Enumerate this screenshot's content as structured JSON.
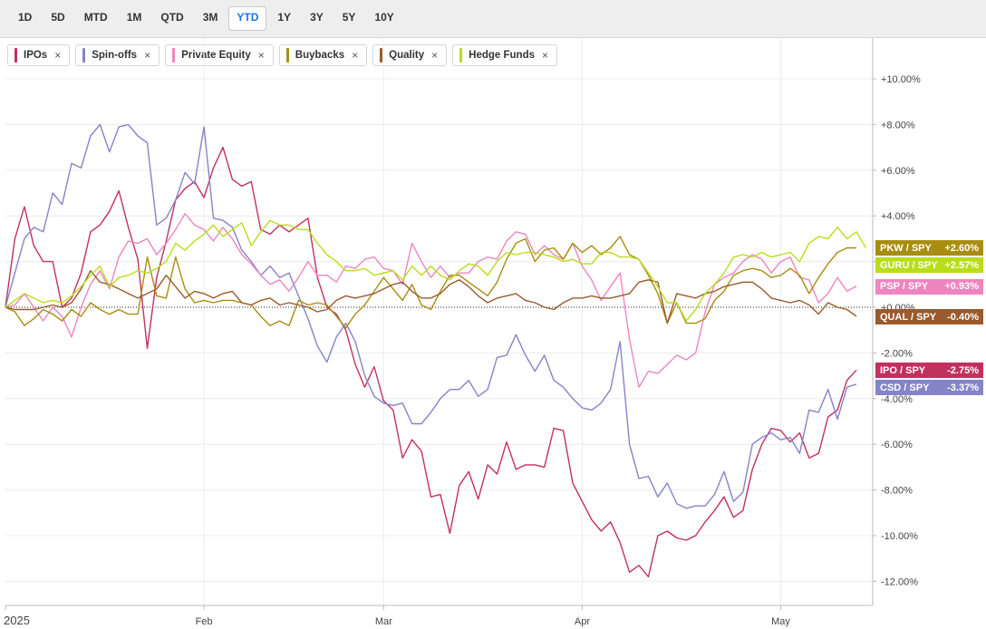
{
  "toolbar": {
    "ranges": [
      "1D",
      "5D",
      "MTD",
      "1M",
      "QTD",
      "3M",
      "YTD",
      "1Y",
      "3Y",
      "5Y",
      "10Y"
    ],
    "active": "YTD"
  },
  "legend": [
    {
      "label": "IPOs",
      "color": "#c2305f"
    },
    {
      "label": "Spin-offs",
      "color": "#8484c8"
    },
    {
      "label": "Private Equity",
      "color": "#ee85c0"
    },
    {
      "label": "Buybacks",
      "color": "#a88d10"
    },
    {
      "label": "Quality",
      "color": "#9a5a2c"
    },
    {
      "label": "Hedge Funds",
      "color": "#b9dd1a"
    }
  ],
  "chart_data": {
    "type": "line",
    "y_unit": "%",
    "ylim": [
      -13,
      12
    ],
    "y_ticks": [
      "+10.00%",
      "+8.00%",
      "+6.00%",
      "+4.00%",
      "+2.00%",
      "+0.00%",
      "-2.00%",
      "-4.00%",
      "-6.00%",
      "-8.00%",
      "-10.00%",
      "-12.00%"
    ],
    "y_tick_values": [
      10,
      8,
      6,
      4,
      2,
      0,
      -2,
      -4,
      -6,
      -8,
      -10,
      -12
    ],
    "x_ticks": [
      {
        "label": "2025",
        "t": 0
      },
      {
        "label": "Feb",
        "t": 21
      },
      {
        "label": "Mar",
        "t": 40
      },
      {
        "label": "Apr",
        "t": 61
      },
      {
        "label": "May",
        "t": 82
      }
    ],
    "x_range": [
      0,
      90
    ],
    "zero_line": "dotted",
    "grid": true,
    "series": [
      {
        "name": "IPO / SPY",
        "legend": "IPOs",
        "end_label": "-2.75%",
        "color": "#c2305f",
        "values": [
          0,
          3,
          4.4,
          2.7,
          2,
          2,
          0,
          0.4,
          1.5,
          3.3,
          3.6,
          4.2,
          5.1,
          3.5,
          2.1,
          -1.8,
          1.3,
          2.9,
          4.7,
          5.2,
          5.5,
          4.8,
          6.1,
          7,
          5.6,
          5.3,
          5.5,
          3.4,
          3.2,
          3.6,
          3.3,
          3.6,
          3.9,
          1.3,
          0,
          -0.3,
          -1,
          -2.5,
          -3.5,
          -2.6,
          -4.1,
          -4.5,
          -6.6,
          -5.8,
          -6.3,
          -8.3,
          -8.2,
          -9.9,
          -7.8,
          -7.2,
          -8.4,
          -6.9,
          -7.3,
          -5.9,
          -7.1,
          -6.9,
          -6.9,
          -7,
          -5.3,
          -5.4,
          -7.7,
          -8.5,
          -9.3,
          -9.8,
          -9.4,
          -10.3,
          -11.6,
          -11.3,
          -11.8,
          -10,
          -9.8,
          -10.1,
          -10.2,
          -10,
          -9.4,
          -8.9,
          -8.3,
          -9.2,
          -8.9,
          -7.1,
          -6,
          -5.3,
          -5.4,
          -5.9,
          -5.5,
          -6.6,
          -6.4,
          -4.8,
          -4.5,
          -3.2,
          -2.75
        ]
      },
      {
        "name": "CSD / SPY",
        "legend": "Spin-offs",
        "end_label": "-3.37%",
        "color": "#8484c8",
        "values": [
          0,
          1.5,
          3,
          3.5,
          3.3,
          5,
          4.5,
          6.3,
          6.1,
          7.5,
          8,
          6.8,
          7.9,
          8,
          7.5,
          7.2,
          3.6,
          3.9,
          4.7,
          5.9,
          5.4,
          7.9,
          3.9,
          3.8,
          3.5,
          2.5,
          2,
          1.4,
          1.8,
          1.3,
          1.5,
          0.5,
          -0.5,
          -1.7,
          -2.4,
          -1.3,
          -0.7,
          -1.5,
          -3,
          -3.9,
          -4.2,
          -4.3,
          -4.2,
          -5.1,
          -5.1,
          -4.6,
          -4,
          -3.6,
          -3.6,
          -3.2,
          -3.9,
          -3.6,
          -2.2,
          -2.1,
          -1.2,
          -2.1,
          -2.8,
          -2.1,
          -3.2,
          -3.5,
          -4,
          -4.4,
          -4.5,
          -4.2,
          -3.6,
          -1.5,
          -6,
          -7.5,
          -7.4,
          -8.3,
          -7.7,
          -8.6,
          -8.8,
          -8.7,
          -8.7,
          -8.2,
          -7.2,
          -8.5,
          -8.1,
          -6,
          -5.7,
          -5.5,
          -5.8,
          -5.7,
          -6.4,
          -4.5,
          -4.6,
          -3.6,
          -4.9,
          -3.5,
          -3.37
        ]
      },
      {
        "name": "PSP / SPY",
        "legend": "Private Equity",
        "end_label": "+0.93%",
        "color": "#ee85c0",
        "values": [
          0,
          0.1,
          0.6,
          0,
          -0.6,
          0,
          -0.4,
          -1.3,
          0,
          1,
          1.6,
          0.8,
          2.2,
          2.9,
          2.8,
          3,
          2.3,
          2.8,
          3.4,
          4.1,
          3.6,
          3.4,
          2.9,
          3.5,
          3,
          2.3,
          1.9,
          1.4,
          1,
          1.2,
          0.7,
          1.3,
          2,
          1.4,
          1.4,
          1.1,
          1.8,
          1.7,
          2.1,
          2.2,
          1.7,
          1.6,
          1,
          2.8,
          2,
          1.3,
          1.8,
          1.3,
          1.5,
          1.5,
          2,
          2.2,
          2.1,
          2.9,
          3.3,
          3.2,
          2.3,
          2.7,
          2.3,
          2.1,
          2.8,
          1.8,
          1.2,
          0.3,
          0.9,
          1.5,
          -1.4,
          -3.5,
          -2.8,
          -2.9,
          -2.5,
          -2.1,
          -2.3,
          -2,
          -0.2,
          1,
          1.3,
          1.5,
          2,
          2.3,
          2.1,
          1.5,
          2,
          2.2,
          1.3,
          1.2,
          0.2,
          0.6,
          1.3,
          0.7,
          0.93
        ]
      },
      {
        "name": "PKW / SPY",
        "legend": "Buybacks",
        "end_label": "+2.60%",
        "color": "#a88d10",
        "values": [
          0,
          -0.2,
          -0.8,
          -0.5,
          -0.1,
          -0.3,
          -0.6,
          -0.1,
          -0.4,
          0.2,
          -0.1,
          -0.3,
          -0.1,
          -0.3,
          -0.3,
          2.2,
          0.5,
          0.4,
          2.2,
          0.8,
          0.2,
          0.3,
          0.2,
          0.3,
          0.3,
          0.2,
          0.1,
          -0.4,
          -0.8,
          -0.6,
          -0.8,
          0.3,
          0.1,
          0.2,
          0.1,
          -0.4,
          -0.9,
          -0.3,
          0.1,
          0.7,
          1.3,
          0.8,
          0.3,
          1,
          0.1,
          -0.1,
          0.7,
          1.4,
          1.4,
          1.1,
          0.8,
          0.5,
          1.1,
          2.1,
          2.8,
          3,
          2,
          2.5,
          2.6,
          2.1,
          2.8,
          2.4,
          2.7,
          2.3,
          2.6,
          3.1,
          2.3,
          2.1,
          1.4,
          0.6,
          -0.7,
          0.2,
          -0.7,
          -0.7,
          -0.5,
          0.3,
          0.7,
          1.4,
          1.6,
          1.7,
          1.6,
          1.3,
          1.4,
          1.7,
          1.4,
          0.6,
          1.3,
          1.9,
          2.4,
          2.6,
          2.6
        ]
      },
      {
        "name": "QUAL / SPY",
        "legend": "Quality",
        "end_label": "-0.40%",
        "color": "#9a5a2c",
        "values": [
          0,
          -0.1,
          -0.1,
          -0.1,
          0,
          0.1,
          0,
          0.2,
          0.8,
          1.6,
          1.1,
          1,
          0.8,
          0.6,
          0.4,
          0.6,
          0.8,
          1.4,
          0.9,
          0.4,
          0.7,
          0.6,
          0.4,
          0.6,
          0.7,
          0.2,
          0.1,
          0.3,
          0.4,
          0.1,
          0.2,
          0.1,
          0,
          -0.2,
          -0.1,
          0.3,
          0.5,
          0.4,
          0.5,
          0.6,
          0.8,
          1,
          1.1,
          0.7,
          0.4,
          0.4,
          0.6,
          1,
          1.2,
          0.9,
          0.5,
          0.2,
          0.4,
          0.5,
          0.6,
          0.3,
          0.2,
          0,
          -0.1,
          0.2,
          0.4,
          0.4,
          0.5,
          0.4,
          0.4,
          0.5,
          0.6,
          1.1,
          1.2,
          1.1,
          -0.7,
          0.6,
          0.5,
          0.4,
          0.6,
          0.7,
          0.9,
          1,
          1.1,
          1.1,
          0.8,
          0.4,
          0.3,
          0.2,
          0.3,
          0.1,
          -0.3,
          0.2,
          0,
          -0.1,
          -0.4
        ]
      },
      {
        "name": "GURU / SPY",
        "legend": "Hedge Funds",
        "end_label": "+2.57%",
        "color": "#b9dd1a",
        "values": [
          0,
          0.3,
          0.6,
          0.4,
          0.2,
          0.3,
          0.2,
          0.5,
          0.9,
          1.4,
          1.8,
          0.9,
          1.3,
          1.4,
          1.6,
          1.5,
          1.7,
          2,
          2.8,
          2.5,
          2.9,
          3.2,
          3.6,
          3.1,
          3.4,
          3.7,
          2.7,
          3.3,
          3.8,
          3.6,
          3.6,
          3.4,
          3.4,
          2.8,
          2.3,
          2,
          1.6,
          1.6,
          1.7,
          1.4,
          1.5,
          1.6,
          1.2,
          1.8,
          1.4,
          1.8,
          1.4,
          1.2,
          1.6,
          1.9,
          1.8,
          1.4,
          2,
          2.4,
          2.3,
          2.4,
          2.4,
          2.3,
          2.2,
          2,
          2.1,
          1.9,
          1.9,
          2.4,
          2.4,
          2.2,
          2.2,
          2.1,
          1.5,
          0.9,
          0.2,
          0.2,
          -0.6,
          -0.1,
          0.6,
          1,
          1.5,
          2.2,
          2.3,
          2.2,
          2.4,
          2.2,
          2.3,
          2.4,
          2,
          2.8,
          3.1,
          3,
          3.5,
          3,
          3.3,
          2.6
        ]
      }
    ]
  }
}
